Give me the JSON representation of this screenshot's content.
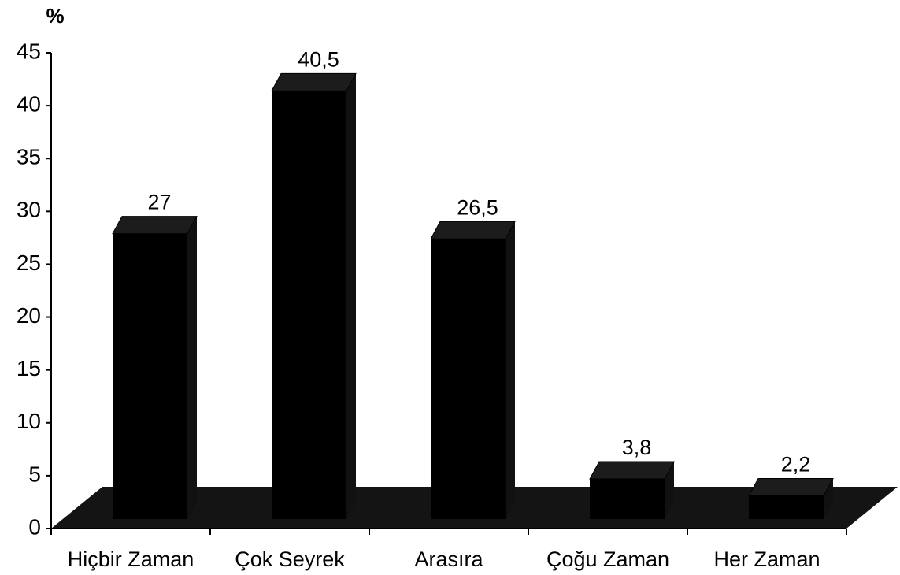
{
  "chart_data": {
    "type": "bar3d",
    "y_axis_label": "%",
    "categories": [
      "Hiçbir Zaman",
      "Çok Seyrek",
      "Arasıra",
      "Çoğu Zaman",
      "Her Zaman"
    ],
    "values": [
      27,
      40.5,
      26.5,
      3.8,
      2.2
    ],
    "value_labels": [
      "27",
      "40,5",
      "26,5",
      "3,8",
      "2,2"
    ],
    "color": "#000000",
    "ylim": [
      0,
      45
    ],
    "yticks": [
      0,
      5,
      10,
      15,
      20,
      25,
      30,
      35,
      40,
      45
    ]
  }
}
